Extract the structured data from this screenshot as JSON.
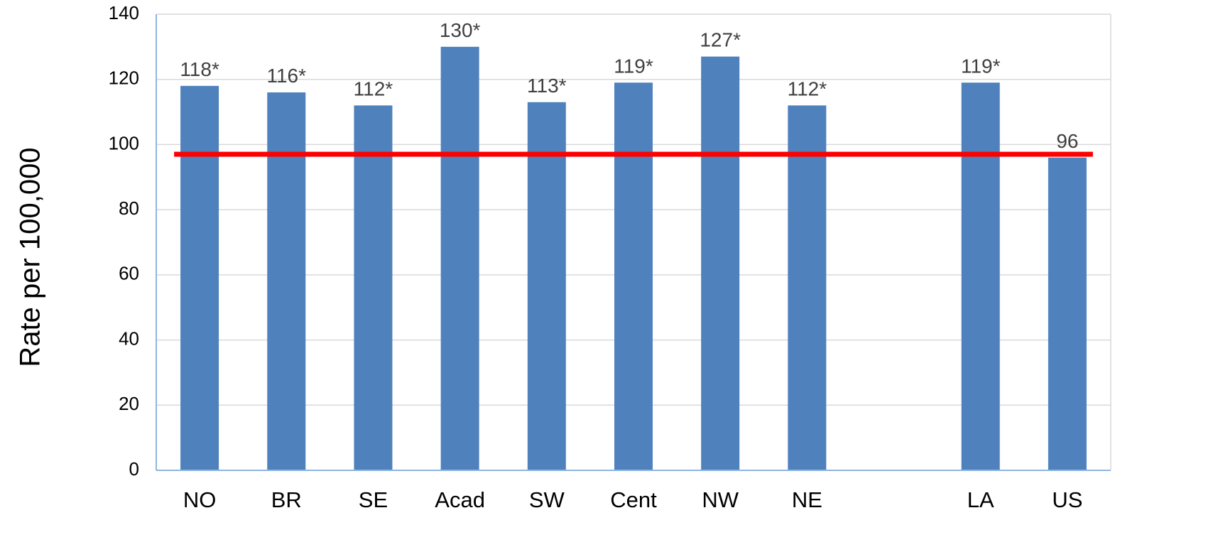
{
  "chart_data": {
    "type": "bar",
    "categories": [
      "NO",
      "BR",
      "SE",
      "Acad",
      "SW",
      "Cent",
      "NW",
      "NE",
      "",
      "LA",
      "US"
    ],
    "values": [
      118,
      116,
      112,
      130,
      113,
      119,
      127,
      112,
      null,
      119,
      96
    ],
    "data_labels": [
      "118*",
      "116*",
      "112*",
      "130*",
      "113*",
      "119*",
      "127*",
      "112*",
      "",
      "119*",
      "96"
    ],
    "reference_line": 97,
    "title": "",
    "xlabel": "",
    "ylabel": "Rate per 100,000",
    "ylim": [
      0,
      140
    ],
    "yticks": [
      0,
      20,
      40,
      60,
      80,
      100,
      120,
      140
    ],
    "grid": true,
    "legend": "none",
    "colors": {
      "bar": "#4F81BD",
      "reference_line": "#FF0000",
      "grid": "#D9D9D9",
      "axis": "#8EB4E3",
      "data_label": "#404040"
    }
  }
}
